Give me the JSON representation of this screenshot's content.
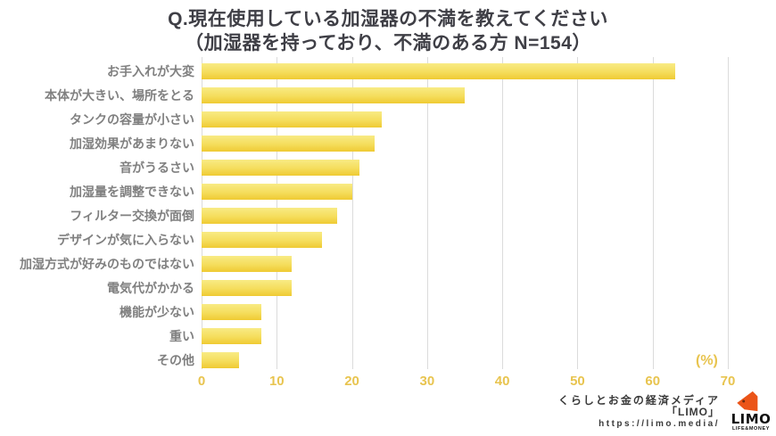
{
  "title": {
    "line1": "Q.現在使用している加湿器の不満を教えてください",
    "line2": "（加湿器を持っており、不満のある方 N=154）"
  },
  "chart_data": {
    "type": "bar",
    "orientation": "horizontal",
    "title": "Q.現在使用している加湿器の不満を教えてください（加湿器を持っており、不満のある方 N=154）",
    "sample_note": "N=154",
    "categories": [
      "お手入れが大変",
      "本体が大きい、場所をとる",
      "タンクの容量が小さい",
      "加湿効果があまりない",
      "音がうるさい",
      "加湿量を調整できない",
      "フィルター交換が面倒",
      "デザインが気に入らない",
      "加湿方式が好みのものではない",
      "電気代がかかる",
      "機能が少ない",
      "重い",
      "その他"
    ],
    "values": [
      63,
      35,
      24,
      23,
      21,
      20,
      18,
      16,
      12,
      12,
      8,
      8,
      5
    ],
    "unit": "%",
    "xlabel": "(%)",
    "xlim": [
      0,
      70
    ],
    "xticks": [
      0,
      10,
      20,
      30,
      40,
      50,
      60,
      70
    ],
    "grid": true,
    "legend": false
  },
  "footer": {
    "line1": "くらしとお金の経済メディア",
    "line2": "「LIMO」",
    "line3": "https://limo.media/"
  },
  "logo": {
    "wordmark": "LIMO",
    "tagline": "LIFE&MONEY"
  },
  "colors": {
    "bar_top": "#F8EB85",
    "bar_bottom": "#EFCA33",
    "axis_label": "#E8C44F",
    "category_label": "#808080",
    "title_text": "#3F3F46",
    "gridline": "#DBDBDB",
    "footer_text": "#3A3A3A",
    "logo_orange": "#EB5418"
  }
}
